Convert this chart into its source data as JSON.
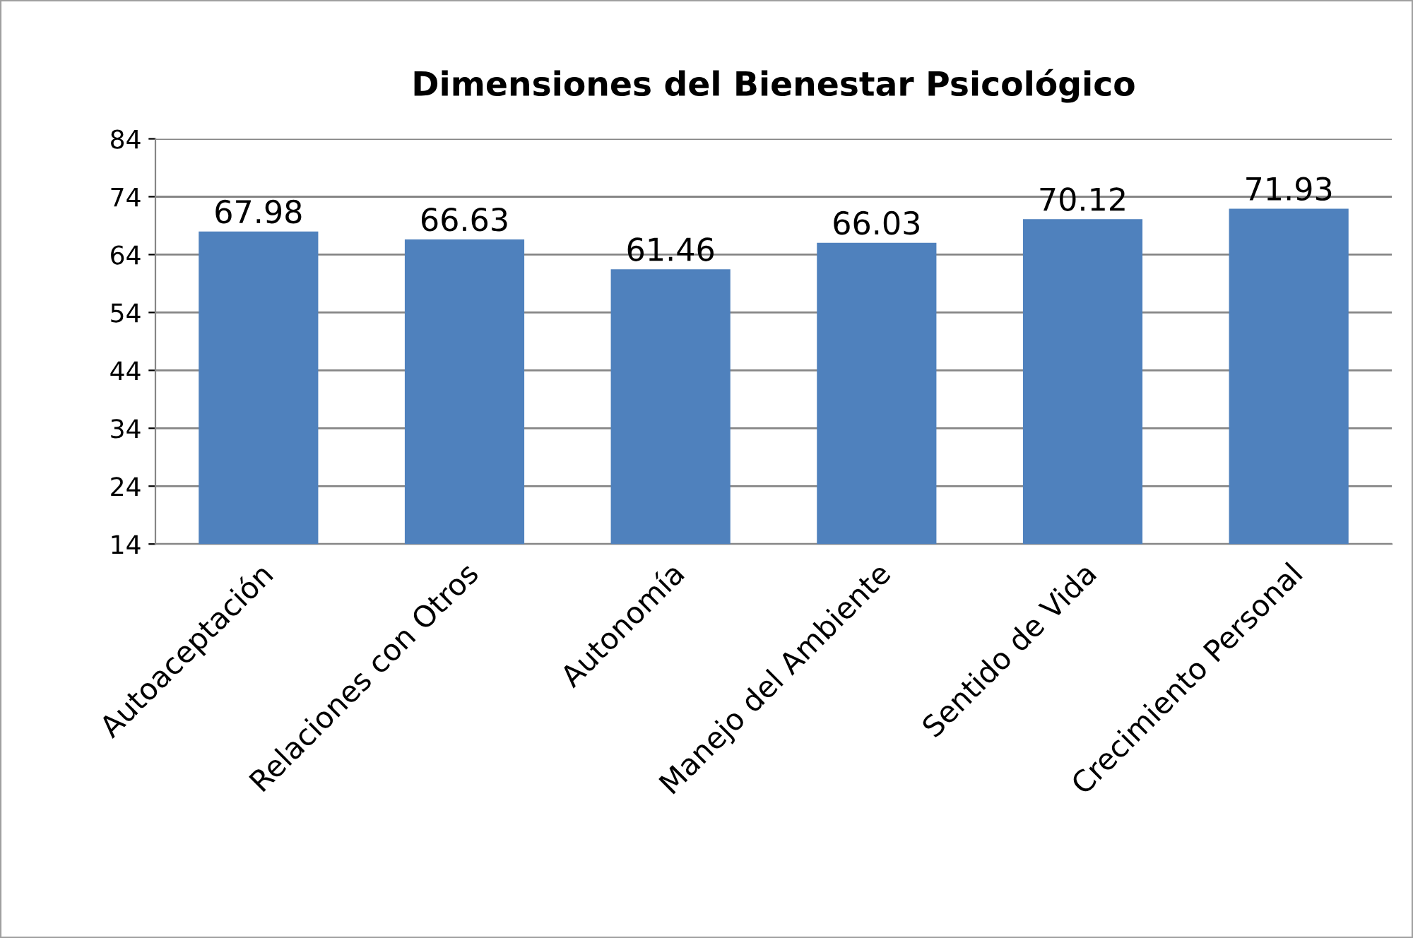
{
  "chart_data": {
    "type": "bar",
    "title": "Dimensiones del Bienestar Psicológico",
    "categories": [
      "Autoaceptación",
      "Relaciones con Otros",
      "Autonomía",
      "Manejo del Ambiente",
      "Sentido de Vida",
      "Crecimiento Personal"
    ],
    "values": [
      67.98,
      66.63,
      61.46,
      66.03,
      70.12,
      71.93
    ],
    "color": "#4f81bd",
    "ylim": [
      14,
      84
    ],
    "yticks": [
      14,
      24,
      34,
      44,
      54,
      64,
      74,
      84
    ],
    "grid": "y",
    "data_labels": true
  }
}
